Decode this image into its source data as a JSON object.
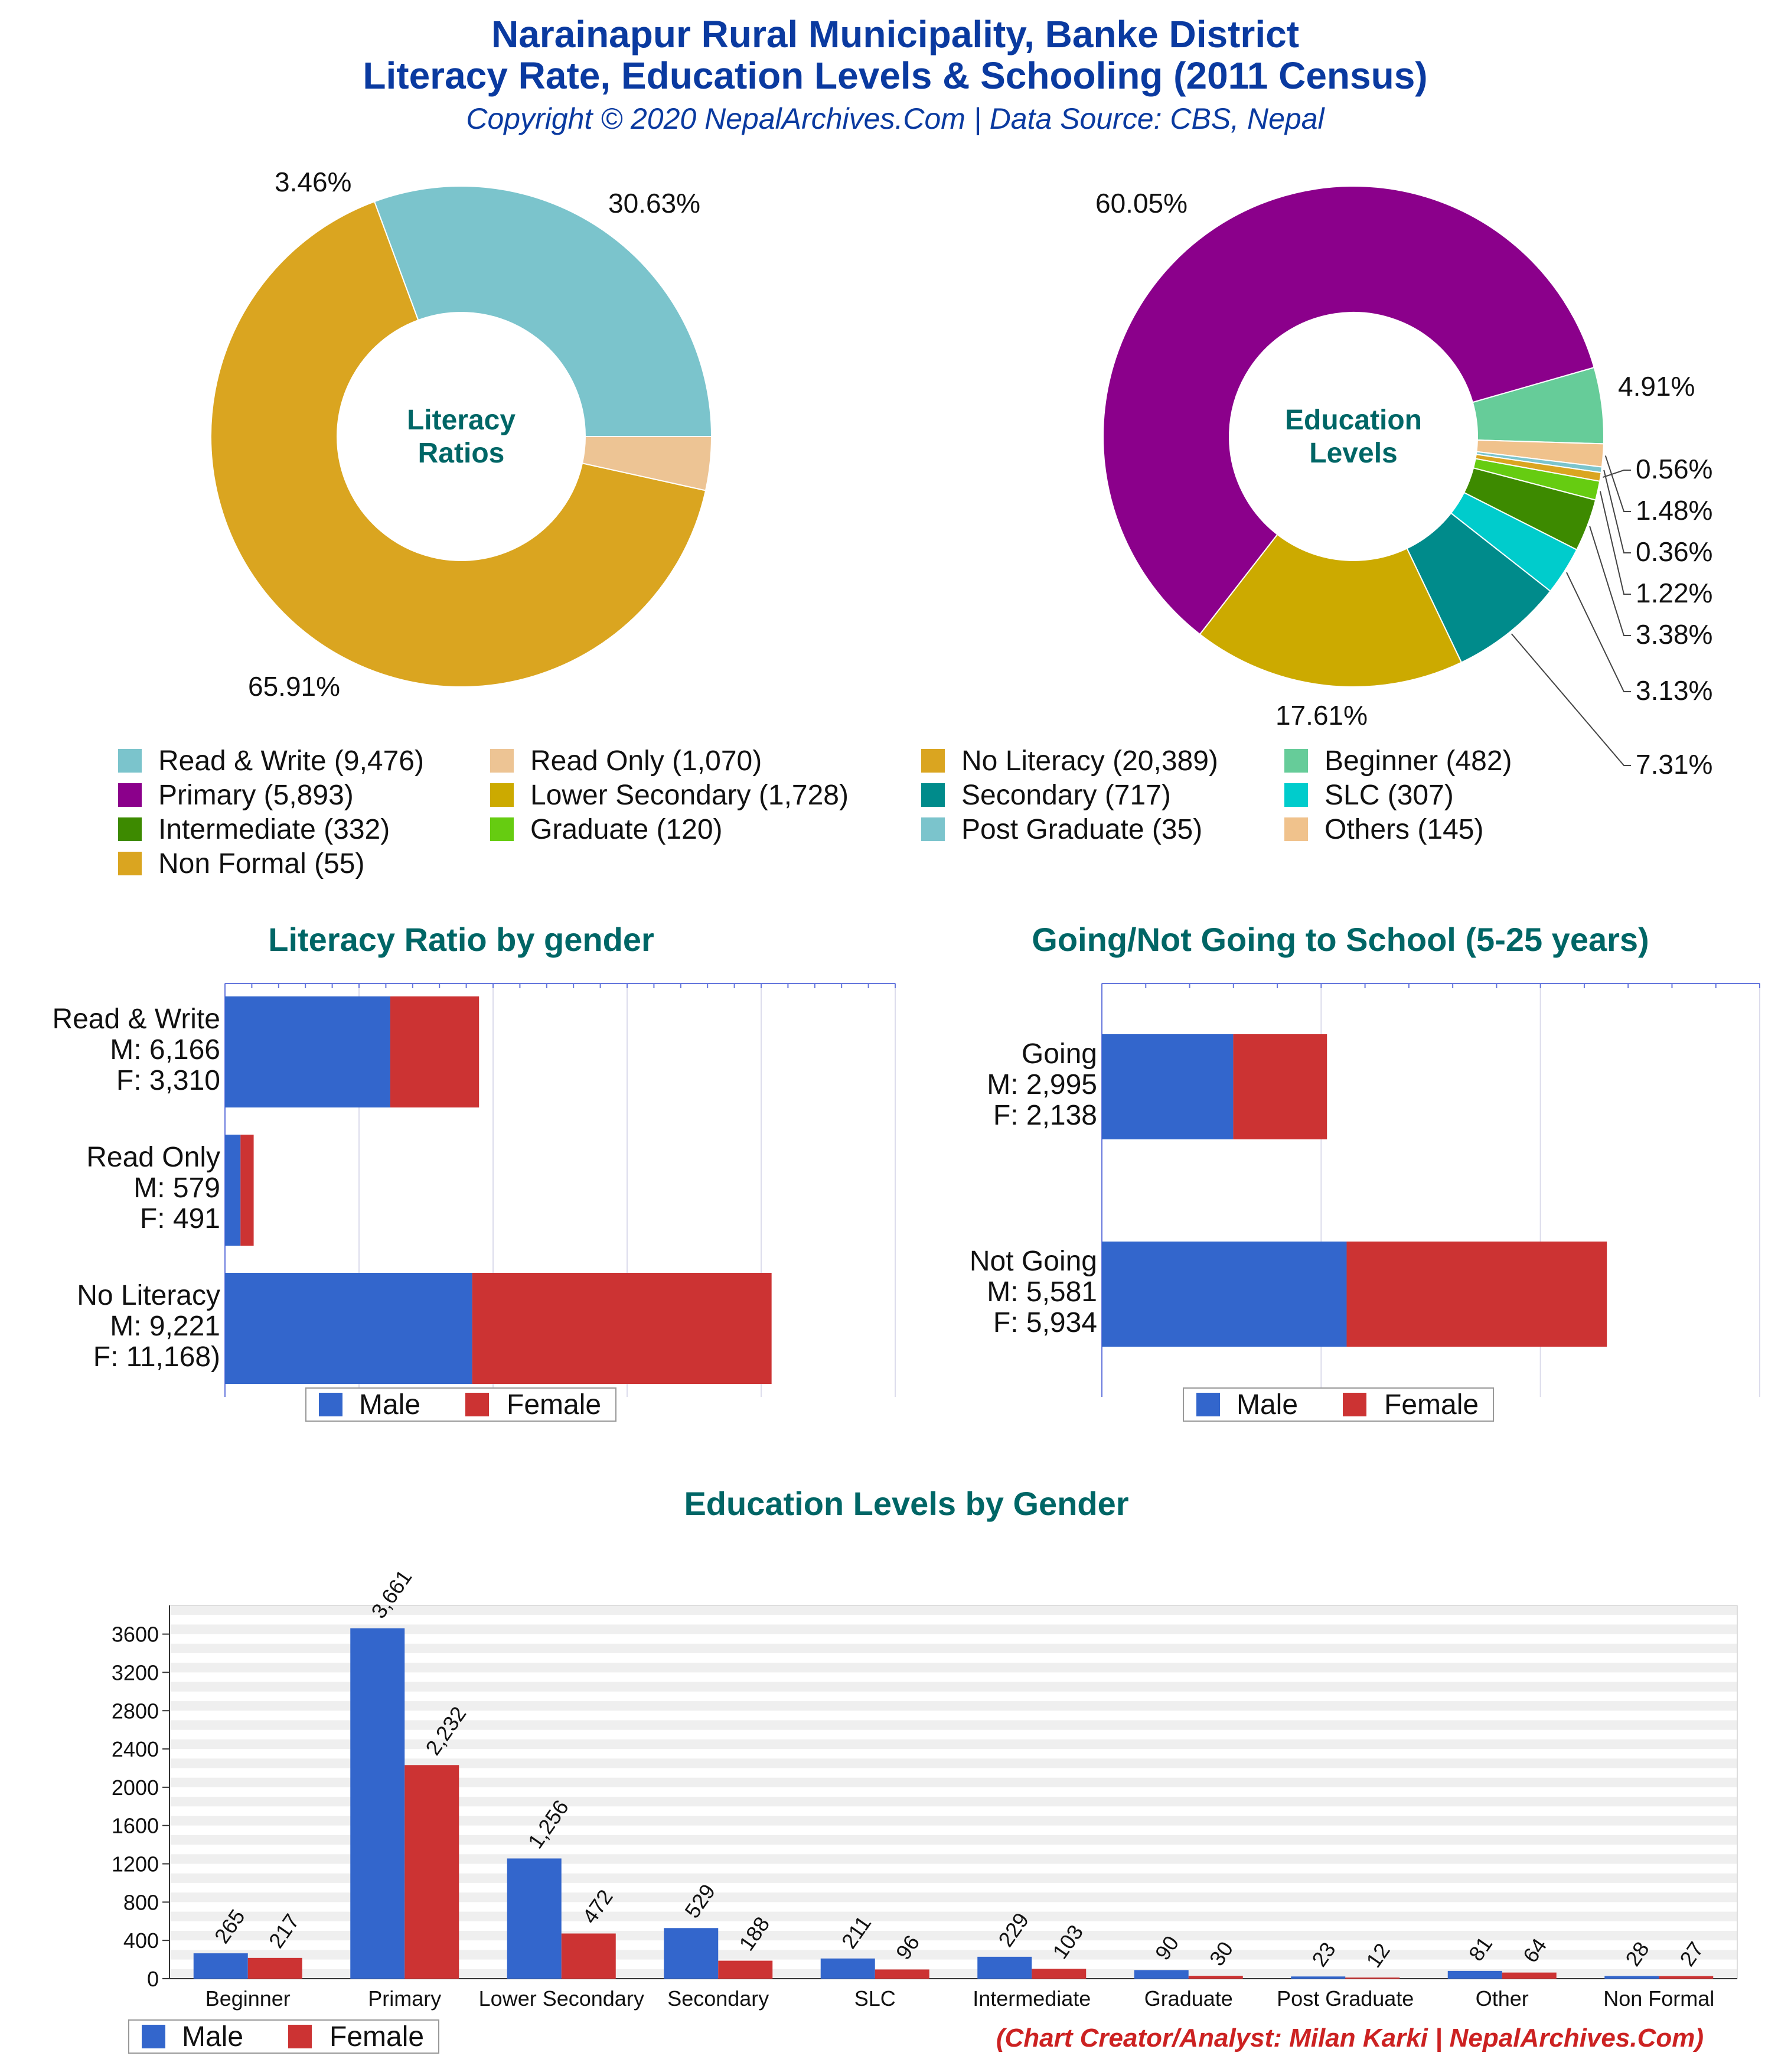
{
  "header": {
    "title_line1": "Narainapur Rural Municipality, Banke District",
    "title_line2": "Literacy Rate, Education Levels & Schooling (2011 Census)",
    "copyright": "Copyright © 2020 NepalArchives.Com | Data Source: CBS, Nepal"
  },
  "colors": {
    "title": "#0a3aa0",
    "section_title": "#006666",
    "male": "#3366cc",
    "female": "#cc3333",
    "credit": "#cc2222"
  },
  "chart_data": [
    {
      "type": "pie",
      "center_label": [
        "Literacy",
        "Ratios"
      ],
      "slices": [
        {
          "label": "Read & Write",
          "value": 9476,
          "percent_label": "30.63%",
          "color": "#7bc4cc"
        },
        {
          "label": "No Literacy",
          "value": 20389,
          "percent_label": "65.91%",
          "color": "#daa520"
        },
        {
          "label": "Read Only",
          "value": 1070,
          "percent_label": "3.46%",
          "color": "#edc494"
        }
      ]
    },
    {
      "type": "pie",
      "center_label": [
        "Education",
        "Levels"
      ],
      "slices": [
        {
          "label": "Beginner",
          "value": 482,
          "percent_label": "4.91%",
          "color": "#66cc99"
        },
        {
          "label": "Others",
          "value": 145,
          "percent_label": "1.48%",
          "color": "#f0c28c"
        },
        {
          "label": "Post Graduate",
          "value": 35,
          "percent_label": "0.36%",
          "color": "#7bc4cc"
        },
        {
          "label": "Non Formal",
          "value": 55,
          "percent_label": "0.56%",
          "color": "#daa520"
        },
        {
          "label": "Graduate",
          "value": 120,
          "percent_label": "1.22%",
          "color": "#66cc11"
        },
        {
          "label": "Intermediate",
          "value": 332,
          "percent_label": "3.38%",
          "color": "#3d8a00"
        },
        {
          "label": "SLC",
          "value": 307,
          "percent_label": "3.13%",
          "color": "#00cccc"
        },
        {
          "label": "Secondary",
          "value": 717,
          "percent_label": "7.31%",
          "color": "#008b8b"
        },
        {
          "label": "Lower Secondary",
          "value": 1728,
          "percent_label": "17.61%",
          "color": "#ccaa00"
        },
        {
          "label": "Primary",
          "value": 5893,
          "percent_label": "60.05%",
          "color": "#8b008b"
        }
      ]
    },
    {
      "type": "bar",
      "orientation": "horizontal",
      "stacked": true,
      "title": "Literacy Ratio by gender",
      "categories": [
        [
          "Read & Write",
          "M: 6,166",
          "F: 3,310"
        ],
        [
          "Read Only",
          "M: 579",
          "F: 491"
        ],
        [
          "No Literacy",
          "M: 9,221",
          "F: 11,168)"
        ]
      ],
      "series": [
        {
          "name": "Male",
          "values": [
            6166,
            579,
            9221
          ]
        },
        {
          "name": "Female",
          "values": [
            3310,
            491,
            11168
          ]
        }
      ],
      "xlim": [
        0,
        25000
      ],
      "legend": "bottom"
    },
    {
      "type": "bar",
      "orientation": "horizontal",
      "stacked": true,
      "title": "Going/Not Going to School (5-25 years)",
      "categories": [
        [
          "Going",
          "M: 2,995",
          "F: 2,138"
        ],
        [
          "Not Going",
          "M: 5,581",
          "F: 5,934"
        ]
      ],
      "series": [
        {
          "name": "Male",
          "values": [
            2995,
            5581
          ]
        },
        {
          "name": "Female",
          "values": [
            2138,
            5934
          ]
        }
      ],
      "xlim": [
        0,
        15000
      ],
      "legend": "bottom"
    },
    {
      "type": "bar",
      "orientation": "vertical",
      "title": "Education Levels by Gender",
      "categories": [
        "Beginner",
        "Primary",
        "Lower Secondary",
        "Secondary",
        "SLC",
        "Intermediate",
        "Graduate",
        "Post Graduate",
        "Other",
        "Non Formal"
      ],
      "series": [
        {
          "name": "Male",
          "values": [
            265,
            3661,
            1256,
            529,
            211,
            229,
            90,
            23,
            81,
            28
          ],
          "labels": [
            "265",
            "3,661",
            "1,256",
            "529",
            "211",
            "229",
            "90",
            "23",
            "81",
            "28"
          ]
        },
        {
          "name": "Female",
          "values": [
            217,
            2232,
            472,
            188,
            96,
            103,
            30,
            12,
            64,
            27
          ],
          "labels": [
            "217",
            "2,232",
            "472",
            "188",
            "96",
            "103",
            "30",
            "12",
            "64",
            "27"
          ]
        }
      ],
      "y_ticks": [
        "0",
        "400",
        "800",
        "1200",
        "1600",
        "2000",
        "2400",
        "2800",
        "3200",
        "3600"
      ],
      "ylim": [
        0,
        3900
      ],
      "legend": "bottom-left"
    }
  ],
  "legend_items": [
    "Read & Write (9,476)",
    "Read Only (1,070)",
    "No Literacy (20,389)",
    "Beginner (482)",
    "Primary (5,893)",
    "Lower Secondary (1,728)",
    "Secondary (717)",
    "SLC (307)",
    "Intermediate (332)",
    "Graduate (120)",
    "Post Graduate (35)",
    "Others (145)",
    "Non Formal (55)"
  ],
  "legend_colors": [
    "#7bc4cc",
    "#edc494",
    "#daa520",
    "#66cc99",
    "#8b008b",
    "#ccaa00",
    "#008b8b",
    "#00cccc",
    "#3d8a00",
    "#66cc11",
    "#7bc4cc",
    "#f0c28c",
    "#daa520"
  ],
  "footer": {
    "credit": "(Chart Creator/Analyst: Milan Karki | NepalArchives.Com)"
  }
}
